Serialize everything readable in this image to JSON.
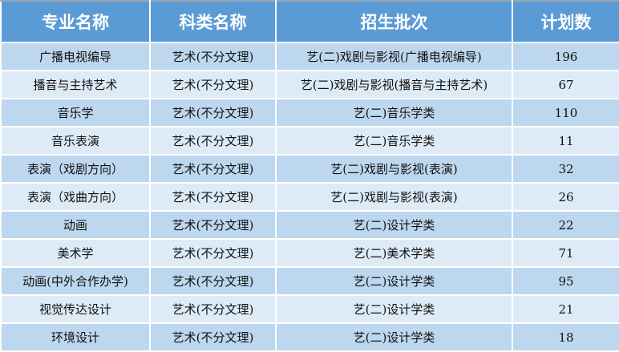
{
  "colors": {
    "header": "#5b9bd5",
    "row_odd": "#bdd7ee",
    "row_even": "#ddebf7"
  },
  "table": {
    "headers": [
      "专业名称",
      "科类名称",
      "招生批次",
      "计划数"
    ],
    "rows": [
      [
        "广播电视编导",
        "艺术(不分文理)",
        "艺(二)戏剧与影视(广播电视编导)",
        "196"
      ],
      [
        "播音与主持艺术",
        "艺术(不分文理)",
        "艺(二)戏剧与影视(播音与主持艺术)",
        "67"
      ],
      [
        "音乐学",
        "艺术(不分文理)",
        "艺(二)音乐学类",
        "110"
      ],
      [
        "音乐表演",
        "艺术(不分文理)",
        "艺(二)音乐学类",
        "11"
      ],
      [
        "表演（戏剧方向）",
        "艺术(不分文理)",
        "艺(二)戏剧与影视(表演)",
        "32"
      ],
      [
        "表演（戏曲方向）",
        "艺术(不分文理)",
        "艺(二)戏剧与影视(表演)",
        "26"
      ],
      [
        "动画",
        "艺术(不分文理)",
        "艺(二)设计学类",
        "22"
      ],
      [
        "美术学",
        "艺术(不分文理)",
        "艺(二)美术学类",
        "71"
      ],
      [
        "动画(中外合作办学)",
        "艺术(不分文理)",
        "艺(二)设计学类",
        "95"
      ],
      [
        "视觉传达设计",
        "艺术(不分文理)",
        "艺(二)设计学类",
        "21"
      ],
      [
        "环境设计",
        "艺术(不分文理)",
        "艺(二)设计学类",
        "18"
      ]
    ]
  }
}
